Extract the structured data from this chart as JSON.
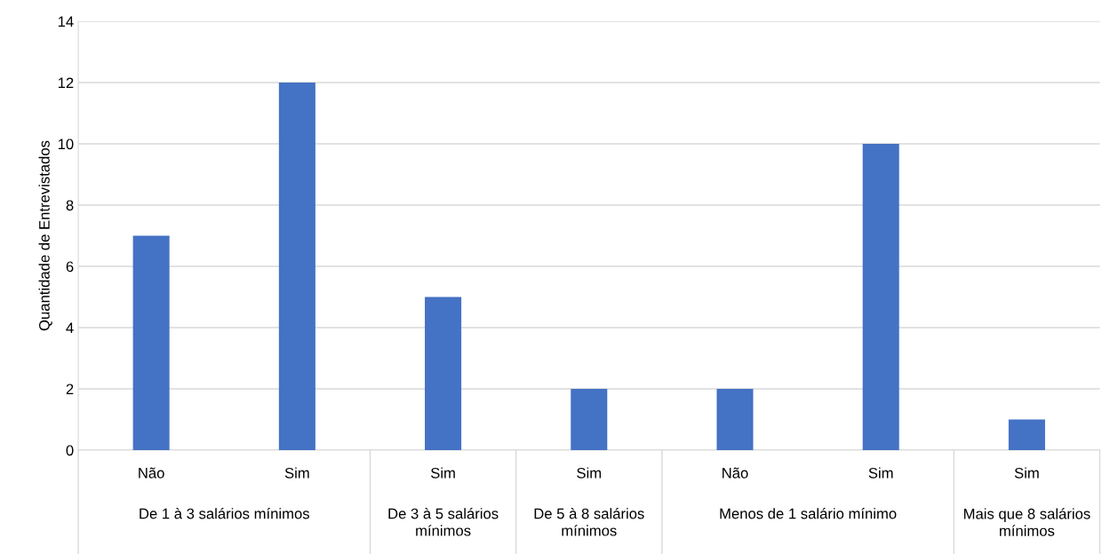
{
  "chart_data": {
    "type": "bar",
    "ylabel": "Quantidade de Entrevistados",
    "categories": [
      "Não",
      "Sim",
      "Sim",
      "Sim",
      "Não",
      "Sim",
      "Sim"
    ],
    "values": [
      7,
      12,
      5,
      2,
      2,
      10,
      1
    ],
    "color": "#4472c4",
    "ylim": [
      0,
      14
    ],
    "yticks": [
      0,
      2,
      4,
      6,
      8,
      10,
      12,
      14
    ],
    "grid": "y",
    "annotations": [
      "De 1 à 3 salários mínimos",
      "De 3 à 5 salários mínimos",
      "De 5 à 8 salários mínimos",
      "Menos de 1 salário mínimo",
      "Mais que 8 salários mínimos"
    ]
  }
}
